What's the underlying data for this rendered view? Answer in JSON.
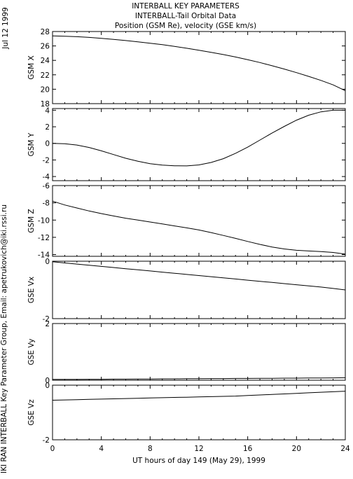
{
  "header": {
    "date": "Jul 12 1999",
    "title_line1": "INTERBALL KEY PARAMETERS",
    "title_line2": "INTERBALL-Tail Orbital Data",
    "title_line3": "Position (GSM Re), velocity (GSE km/s)",
    "side_credit": "IKI RAN INTERBALL Key Parameter Group, Email: apetrukovich@iki.rssi.ru"
  },
  "chart_data": {
    "type": "line",
    "x": [
      0,
      1,
      2,
      3,
      4,
      5,
      6,
      7,
      8,
      9,
      10,
      11,
      12,
      13,
      14,
      15,
      16,
      17,
      18,
      19,
      20,
      21,
      22,
      23,
      24
    ],
    "xlim": [
      0,
      24
    ],
    "xticks": [
      "0",
      "4",
      "8",
      "12",
      "16",
      "20",
      "24"
    ],
    "xlabel": "UT hours of day 149 (May 29), 1999",
    "panels": [
      {
        "ylabel": "GSM X",
        "ylim": [
          18,
          28
        ],
        "yticks": [
          18,
          20,
          22,
          24,
          26,
          28
        ],
        "values": [
          27.4,
          27.35,
          27.28,
          27.18,
          27.05,
          26.9,
          26.75,
          26.57,
          26.38,
          26.17,
          25.93,
          25.68,
          25.41,
          25.12,
          24.81,
          24.47,
          24.1,
          23.7,
          23.25,
          22.8,
          22.3,
          21.78,
          21.22,
          20.6,
          19.8
        ]
      },
      {
        "ylabel": "GSM Y",
        "ylim": [
          -4.5,
          4.2
        ],
        "yticks": [
          -4,
          -2,
          0,
          2,
          4
        ],
        "values": [
          0,
          -0.05,
          -0.2,
          -0.5,
          -0.9,
          -1.35,
          -1.8,
          -2.15,
          -2.45,
          -2.62,
          -2.7,
          -2.72,
          -2.6,
          -2.3,
          -1.85,
          -1.2,
          -0.45,
          0.4,
          1.25,
          2.05,
          2.8,
          3.4,
          3.8,
          4.0,
          4.0
        ]
      },
      {
        "ylabel": "GSM Z",
        "ylim": [
          -14.2,
          -6
        ],
        "yticks": [
          -14,
          -12,
          -10,
          -8,
          -6
        ],
        "values": [
          -7.8,
          -8.25,
          -8.6,
          -8.95,
          -9.25,
          -9.52,
          -9.78,
          -10.0,
          -10.22,
          -10.45,
          -10.68,
          -10.9,
          -11.15,
          -11.45,
          -11.78,
          -12.12,
          -12.48,
          -12.82,
          -13.12,
          -13.35,
          -13.5,
          -13.58,
          -13.65,
          -13.75,
          -13.95
        ]
      },
      {
        "ylabel": "GSE Vx",
        "ylim": [
          -2,
          0
        ],
        "yticks": [
          -2,
          0
        ],
        "values": [
          -0.02,
          -0.06,
          -0.1,
          -0.14,
          -0.18,
          -0.22,
          -0.26,
          -0.3,
          -0.34,
          -0.38,
          -0.42,
          -0.46,
          -0.5,
          -0.54,
          -0.58,
          -0.62,
          -0.66,
          -0.7,
          -0.74,
          -0.78,
          -0.82,
          -0.86,
          -0.9,
          -0.95,
          -1.0
        ]
      },
      {
        "ylabel": "GSE Vy",
        "ylim": [
          0,
          2
        ],
        "yticks": [
          0,
          2
        ],
        "values": [
          0.03,
          0.03,
          0.03,
          0.035,
          0.035,
          0.04,
          0.04,
          0.045,
          0.045,
          0.05,
          0.05,
          0.055,
          0.055,
          0.06,
          0.06,
          0.065,
          0.065,
          0.07,
          0.07,
          0.075,
          0.075,
          0.08,
          0.08,
          0.085,
          0.09
        ]
      },
      {
        "ylabel": "GSE Vz",
        "ylim": [
          -2,
          0
        ],
        "yticks": [
          -2,
          0
        ],
        "values": [
          -0.55,
          -0.54,
          -0.53,
          -0.52,
          -0.51,
          -0.5,
          -0.49,
          -0.48,
          -0.47,
          -0.46,
          -0.45,
          -0.44,
          -0.43,
          -0.42,
          -0.41,
          -0.4,
          -0.38,
          -0.36,
          -0.34,
          -0.32,
          -0.3,
          -0.28,
          -0.26,
          -0.24,
          -0.22
        ]
      }
    ]
  }
}
